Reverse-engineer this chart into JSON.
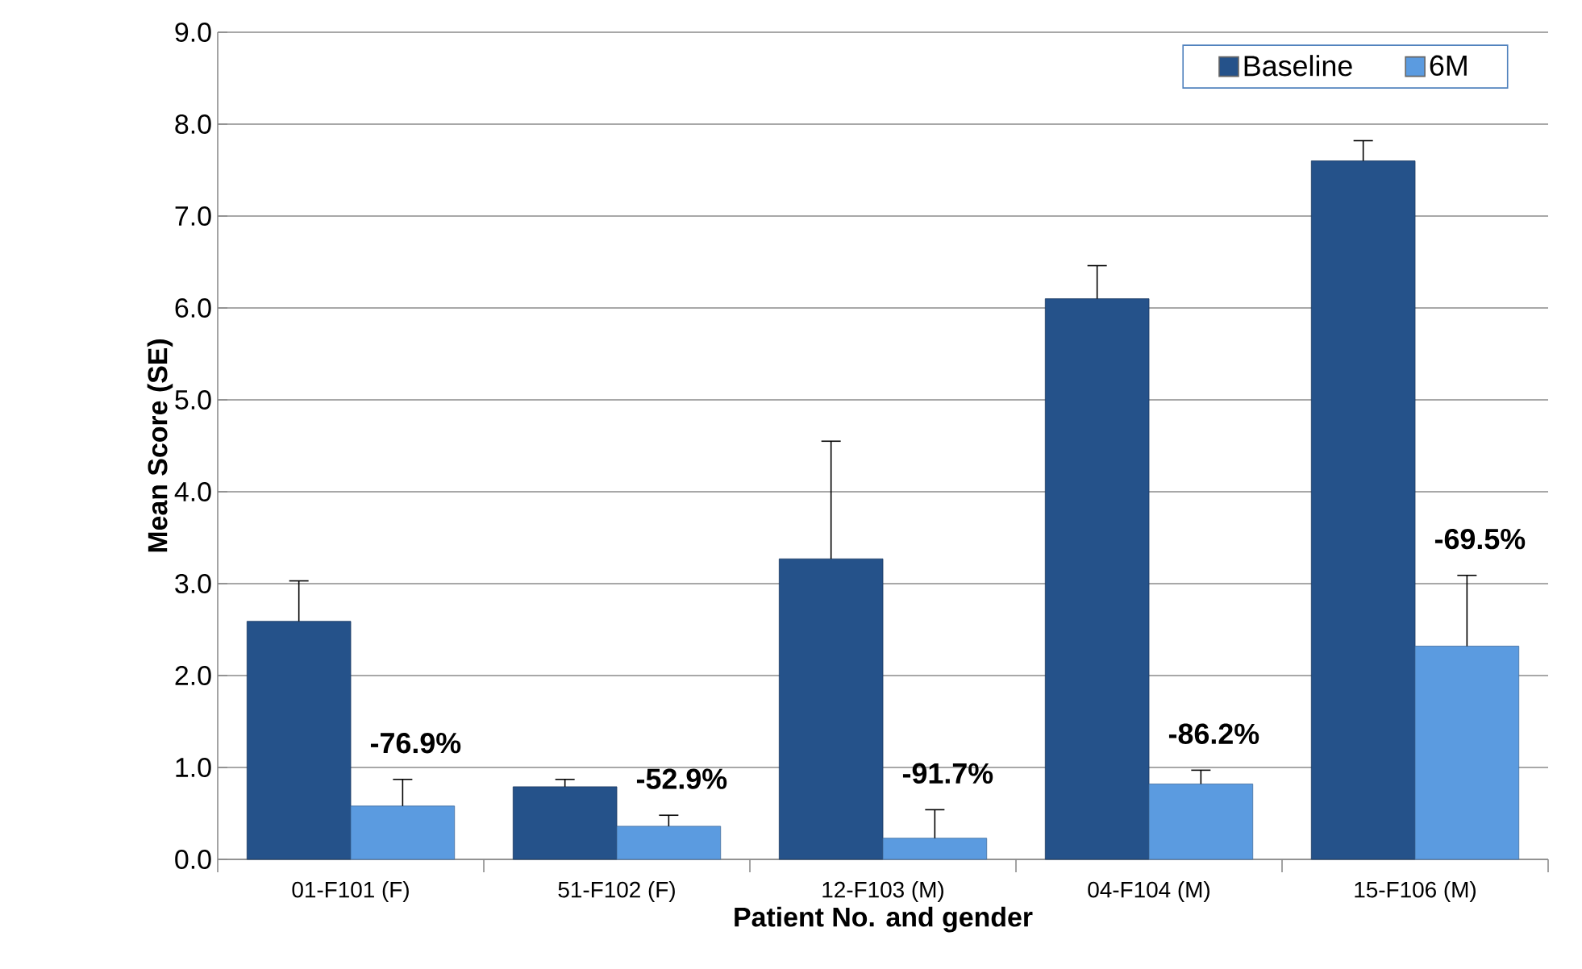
{
  "chart_data": {
    "type": "bar",
    "xlabel": "Patient No. and gender",
    "ylabel": "Mean Score (SE)",
    "categories": [
      "01-F101 (F)",
      "51-F102 (F)",
      "12-F103 (M)",
      "04-F104 (M)",
      "15-F106 (M)"
    ],
    "series": [
      {
        "name": "Baseline",
        "color": "#25528a",
        "values": [
          2.59,
          0.79,
          3.27,
          6.1,
          7.6
        ],
        "errors": [
          0.44,
          0.08,
          1.28,
          0.36,
          0.22
        ]
      },
      {
        "name": "6M",
        "color": "#5b9be0",
        "values": [
          0.58,
          0.36,
          0.23,
          0.82,
          2.32
        ],
        "errors": [
          0.29,
          0.12,
          0.31,
          0.15,
          0.77
        ]
      }
    ],
    "annotations": [
      {
        "text": "-76.9%",
        "x": "01-F101 (F)",
        "y": 0.87
      },
      {
        "text": "-52.9%",
        "x": "51-F102 (F)",
        "y": 0.48
      },
      {
        "text": "-91.7%",
        "x": "12-F103 (M)",
        "y": 0.54
      },
      {
        "text": "-86.2%",
        "x": "04-F104 (M)",
        "y": 0.97
      },
      {
        "text": "-69.5%",
        "x": "15-F106 (M)",
        "y": 3.09
      }
    ],
    "ylim": [
      0,
      9
    ],
    "yticks": [
      {
        "value": 0,
        "label": "0.0"
      },
      {
        "value": 1,
        "label": "1.0"
      },
      {
        "value": 2,
        "label": "2.0"
      },
      {
        "value": 3,
        "label": "3.0"
      },
      {
        "value": 4,
        "label": "4.0"
      },
      {
        "value": 5,
        "label": "5.0"
      },
      {
        "value": 6,
        "label": "6.0"
      },
      {
        "value": 7,
        "label": "7.0"
      },
      {
        "value": 8,
        "label": "8.0"
      },
      {
        "value": 9,
        "label": "9.0"
      }
    ],
    "grid": "y",
    "legend": "top right"
  }
}
